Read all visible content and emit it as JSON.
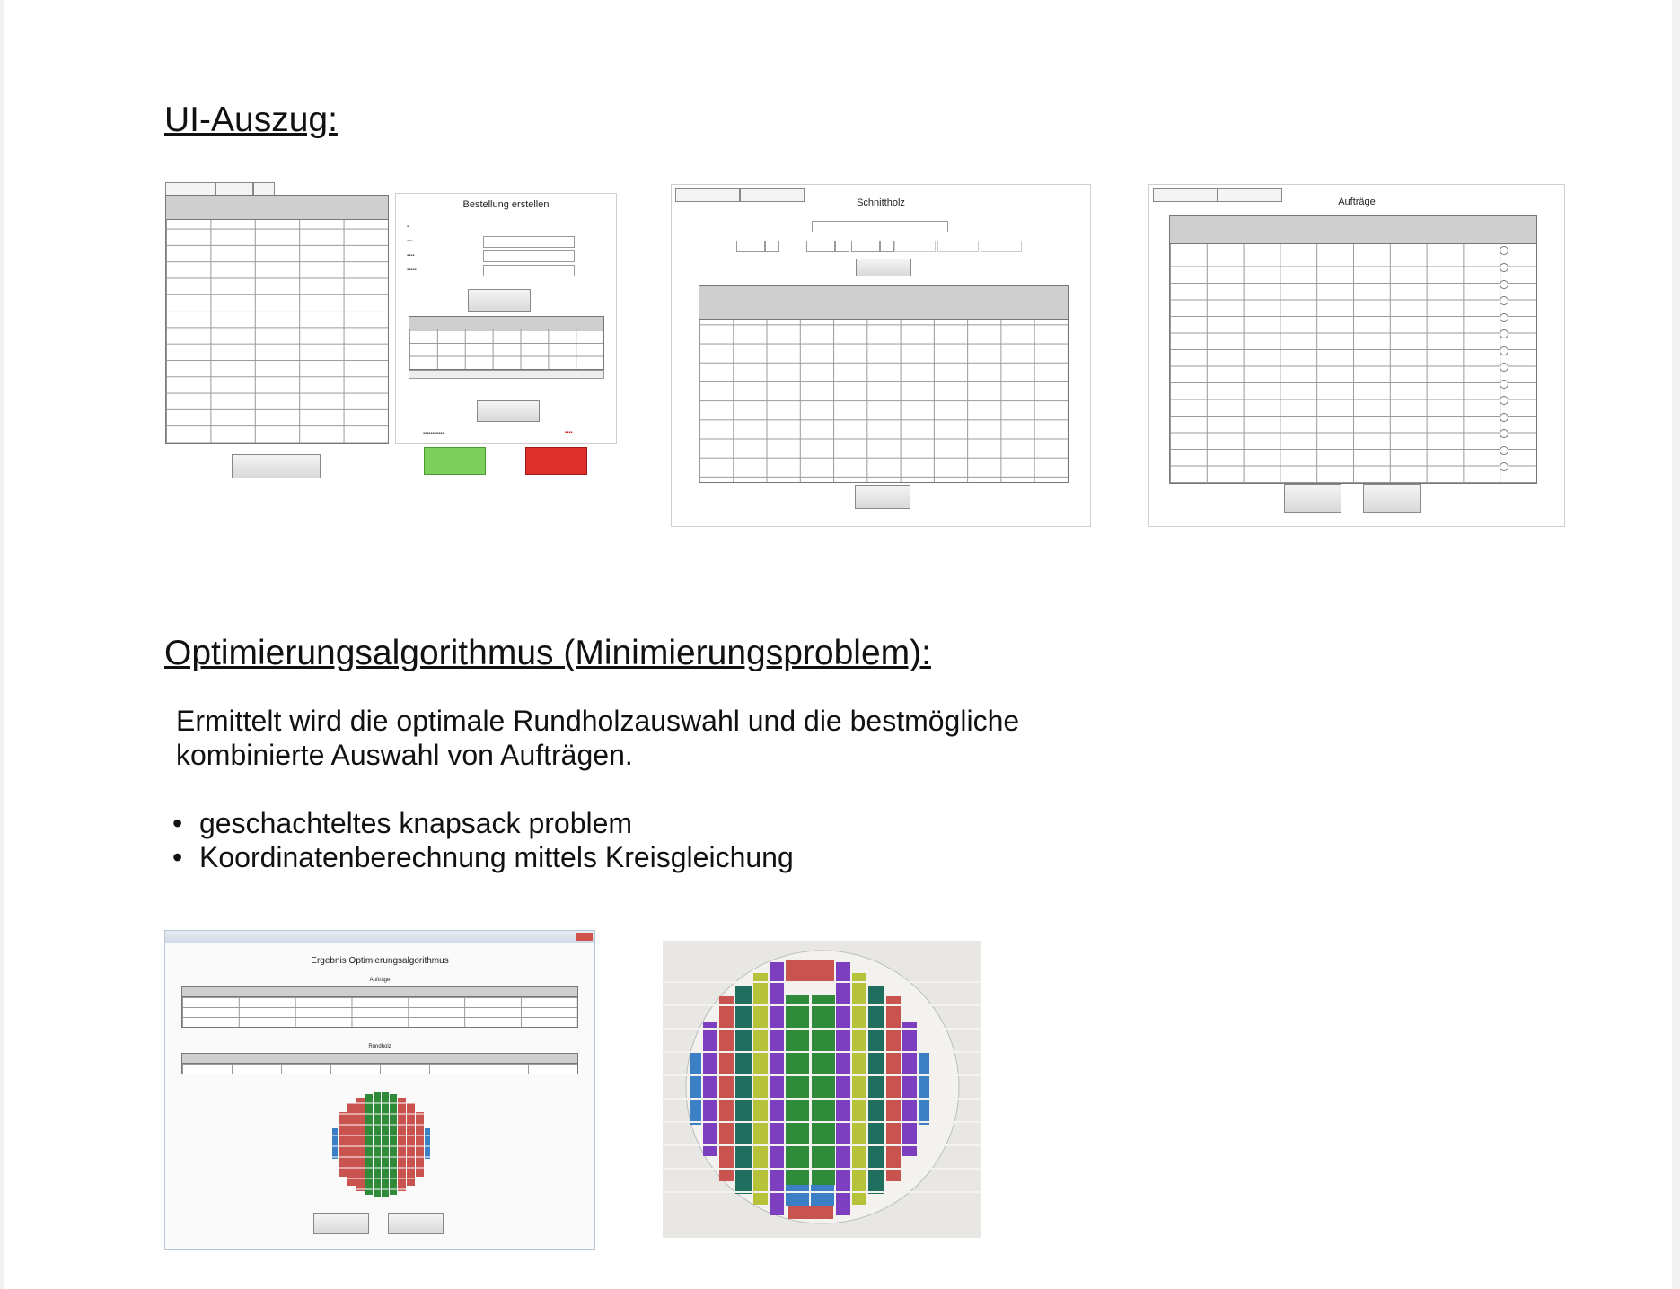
{
  "sections": {
    "ui_heading": "UI-Auszug:",
    "algo_heading": "Optimierungsalgorithmus (Minimierungsproblem):"
  },
  "intro_text": "Ermittelt wird die optimale Rundholzauswahl und die bestmögliche kombinierte Auswahl von Aufträgen.",
  "bullets": [
    "geschachteltes knapsack problem",
    "Koordinatenberechnung mittels Kreisgleichung"
  ],
  "screens": {
    "bestellung": {
      "title": "Bestellung erstellen"
    },
    "schnittholz": {
      "title": "Schnittholz"
    },
    "auftraege": {
      "title": "Aufträge"
    },
    "ergebnis": {
      "title": "Ergebnis Optimierungsalgorithmus",
      "sub1": "Aufträge",
      "sub2": "Rundholz"
    }
  },
  "colors": {
    "green_button": "#7ed05c",
    "red_button": "#e0302d",
    "layout_green": "#2f8a3a",
    "layout_purple": "#7b3fbf",
    "layout_olive": "#b5c23a",
    "layout_red": "#c9534f",
    "layout_blue": "#3b7fc4",
    "layout_teal": "#1f6e5e"
  }
}
